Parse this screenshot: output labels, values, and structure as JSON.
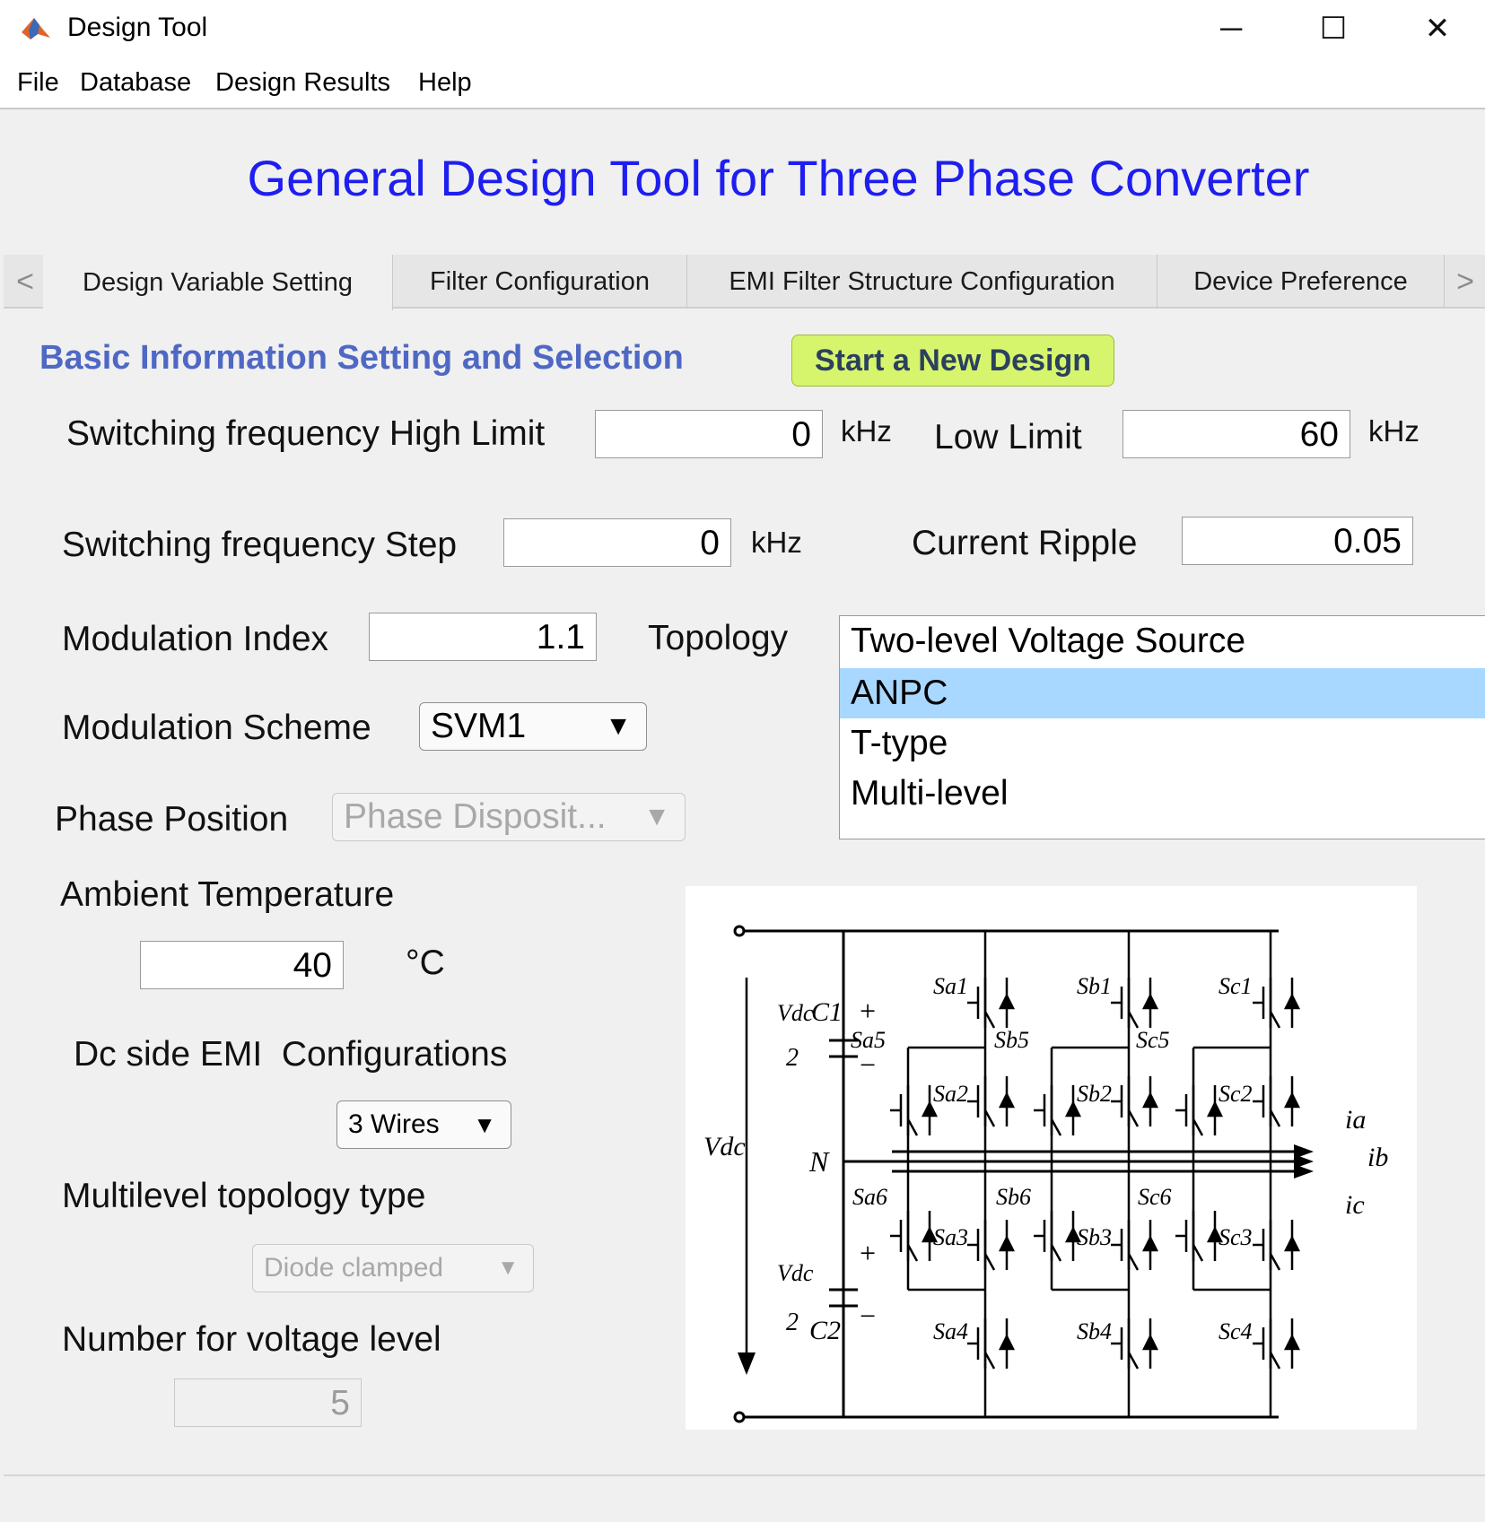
{
  "window": {
    "title": "Design Tool",
    "minimize_glyph": "─",
    "maximize_glyph": "☐",
    "close_glyph": "✕",
    "icon": "matlab-icon"
  },
  "menu": [
    "File",
    "Database",
    "Design Results",
    "Help"
  ],
  "heading": "General Design Tool for Three Phase Converter",
  "tabs": {
    "left_arrow": "<",
    "right_arrow": ">",
    "items": [
      "Design Variable Setting",
      "Filter Configuration",
      "EMI Filter Structure Configuration",
      "Device Preference"
    ],
    "active_index": 0
  },
  "section_title": "Basic Information Setting and Selection",
  "new_design_button": "Start a New Design",
  "fields": {
    "sw_high_label": "Switching frequency High Limit",
    "sw_high_value": "0",
    "sw_high_unit": "kHz",
    "low_limit_label": "Low Limit",
    "low_limit_value": "60",
    "low_limit_unit": "kHz",
    "sw_step_label": "Switching frequency Step",
    "sw_step_value": "0",
    "sw_step_unit": "kHz",
    "ripple_label": "Current Ripple",
    "ripple_value": "0.05",
    "mod_index_label": "Modulation Index",
    "mod_index_value": "1.1",
    "topology_label": "Topology",
    "mod_scheme_label": "Modulation Scheme",
    "mod_scheme_value": "SVM1",
    "phase_pos_label": "Phase Position",
    "phase_pos_value": "Phase Disposit...",
    "ambient_label": "Ambient Temperature",
    "ambient_value": "40",
    "ambient_unit": "°C",
    "dc_emi_label": "Dc side EMI  Configurations",
    "dc_emi_value": "3 Wires",
    "multilevel_label": "Multilevel topology type",
    "multilevel_value": "Diode clamped",
    "voltage_level_label": "Number for voltage level",
    "voltage_level_value": "5",
    "dropdown_arrow": "▼"
  },
  "topology_options": [
    "Two-level Voltage Source",
    "ANPC",
    "T-type",
    "Multi-level"
  ],
  "topology_selected": "ANPC",
  "circuit_labels": {
    "vdc": "V",
    "vdc_sub": "dc",
    "vdc_half_top": "V",
    "two": "2",
    "c1": "C",
    "c1_sub": "1",
    "c2": "C",
    "c2_sub": "2",
    "n": "N",
    "plus": "+",
    "minus": "−",
    "ia": "i",
    "ia_sub": "a",
    "ib": "i",
    "ib_sub": "b",
    "ic": "i",
    "ic_sub": "c",
    "switches": [
      "Sa1",
      "Sb1",
      "Sc1",
      "Sa5",
      "Sb5",
      "Sc5",
      "Sa2",
      "Sb2",
      "Sc2",
      "Sa6",
      "Sb6",
      "Sc6",
      "Sa3",
      "Sb3",
      "Sc3",
      "Sa4",
      "Sb4",
      "Sc4"
    ]
  },
  "colors": {
    "heading": "#1e1ef0",
    "section": "#4f68c4",
    "button_bg": "#d7f56c",
    "selection": "#a8d8ff"
  }
}
